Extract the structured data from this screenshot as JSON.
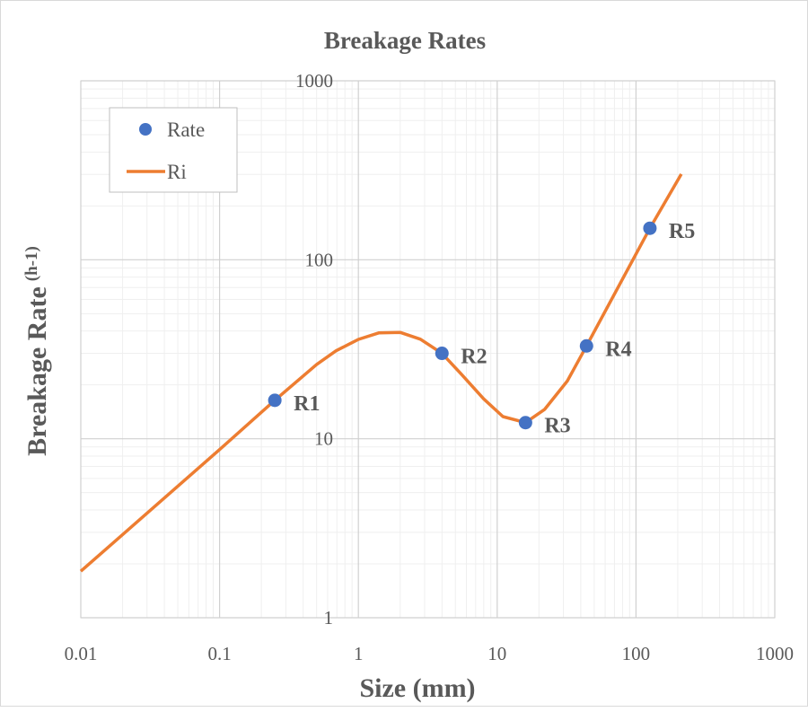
{
  "chart_data": {
    "type": "scatter",
    "title": "Breakage Rates",
    "xlabel": "Size (mm)",
    "ylabel": "Breakage Rate",
    "ylabel_superscript": "(h-1)",
    "x_scale": "log",
    "y_scale": "log",
    "xlim": [
      0.01,
      1000
    ],
    "ylim": [
      1,
      1000
    ],
    "x_ticks": [
      "0.01",
      "0.1",
      "1",
      "10",
      "100",
      "1000"
    ],
    "y_ticks": [
      "1",
      "10",
      "100",
      "1000"
    ],
    "grid": true,
    "legend_position": "top-left",
    "series": [
      {
        "name": "Rate",
        "kind": "scatter",
        "color": "#4472c4",
        "points": [
          {
            "label": "R1",
            "x": 0.25,
            "y": 16.4
          },
          {
            "label": "R2",
            "x": 4.0,
            "y": 30
          },
          {
            "label": "R3",
            "x": 16,
            "y": 12.3
          },
          {
            "label": "R4",
            "x": 44,
            "y": 33
          },
          {
            "label": "R5",
            "x": 126,
            "y": 150
          }
        ]
      },
      {
        "name": "Ri",
        "kind": "line",
        "color": "#ed7d31",
        "x": [
          0.01,
          0.1,
          0.25,
          0.5,
          0.69,
          1.0,
          1.4,
          2.0,
          2.8,
          4.0,
          5.5,
          8,
          11,
          16,
          22,
          32,
          44,
          126,
          212
        ],
        "y": [
          1.82,
          8.7,
          16.4,
          26,
          31,
          35.9,
          39,
          39.3,
          36,
          30,
          23,
          16.7,
          13.3,
          12.3,
          14.6,
          21,
          33,
          150,
          301
        ]
      }
    ]
  }
}
